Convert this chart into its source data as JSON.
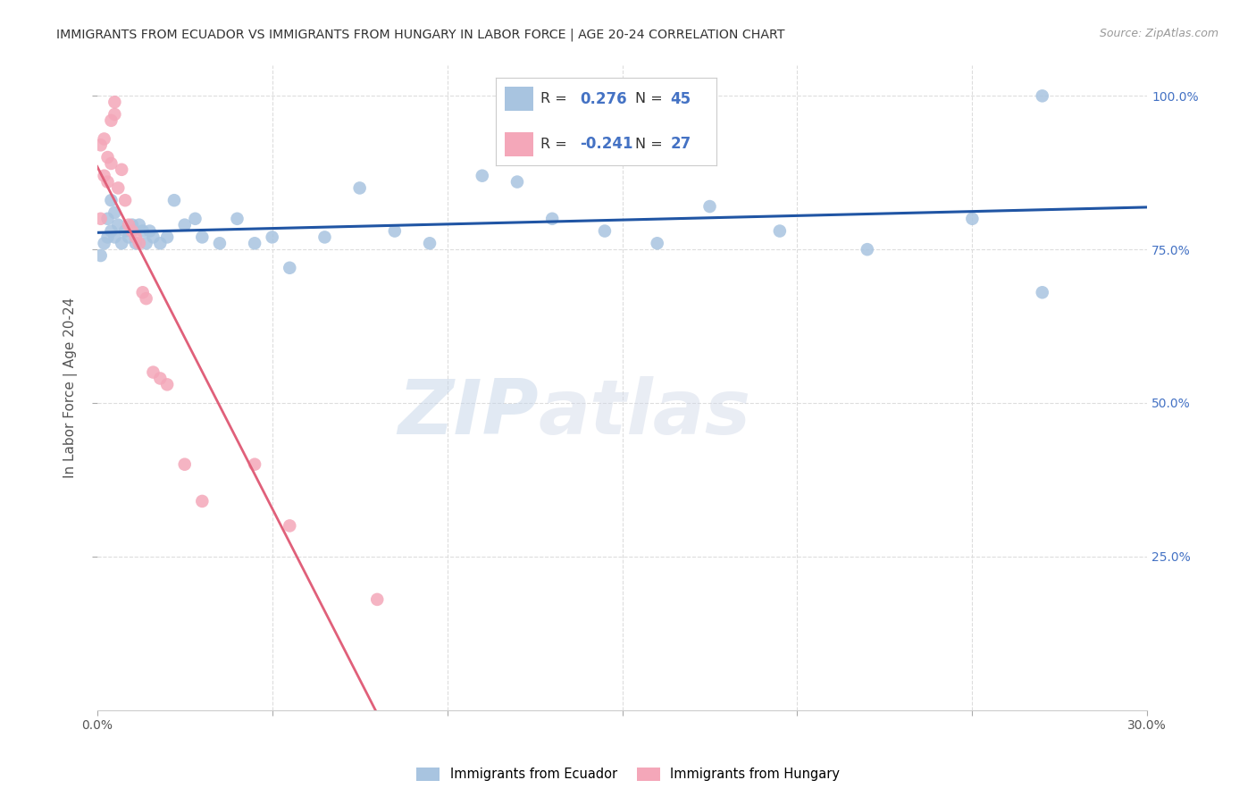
{
  "title": "IMMIGRANTS FROM ECUADOR VS IMMIGRANTS FROM HUNGARY IN LABOR FORCE | AGE 20-24 CORRELATION CHART",
  "source": "Source: ZipAtlas.com",
  "ylabel": "In Labor Force | Age 20-24",
  "xlim": [
    0.0,
    0.3
  ],
  "ylim": [
    0.0,
    1.05
  ],
  "r_ecuador": 0.276,
  "n_ecuador": 45,
  "r_hungary": -0.241,
  "n_hungary": 27,
  "ecuador_color": "#a8c4e0",
  "hungary_color": "#f4a7b9",
  "ecuador_line_color": "#2055a4",
  "hungary_line_color": "#e0607a",
  "ecuador_scatter_x": [
    0.001,
    0.002,
    0.003,
    0.003,
    0.004,
    0.004,
    0.005,
    0.005,
    0.006,
    0.007,
    0.008,
    0.009,
    0.01,
    0.011,
    0.012,
    0.013,
    0.014,
    0.015,
    0.016,
    0.018,
    0.02,
    0.022,
    0.025,
    0.028,
    0.03,
    0.035,
    0.04,
    0.045,
    0.05,
    0.055,
    0.065,
    0.075,
    0.085,
    0.095,
    0.11,
    0.12,
    0.13,
    0.145,
    0.16,
    0.175,
    0.195,
    0.22,
    0.25,
    0.27,
    0.27
  ],
  "ecuador_scatter_y": [
    0.74,
    0.76,
    0.77,
    0.8,
    0.78,
    0.83,
    0.77,
    0.81,
    0.79,
    0.76,
    0.78,
    0.77,
    0.79,
    0.76,
    0.79,
    0.78,
    0.76,
    0.78,
    0.77,
    0.76,
    0.77,
    0.83,
    0.79,
    0.8,
    0.77,
    0.76,
    0.8,
    0.76,
    0.77,
    0.72,
    0.77,
    0.85,
    0.78,
    0.76,
    0.87,
    0.86,
    0.8,
    0.78,
    0.76,
    0.82,
    0.78,
    0.75,
    0.8,
    0.68,
    1.0
  ],
  "hungary_scatter_x": [
    0.001,
    0.001,
    0.002,
    0.002,
    0.003,
    0.003,
    0.004,
    0.004,
    0.005,
    0.005,
    0.006,
    0.007,
    0.008,
    0.009,
    0.01,
    0.011,
    0.012,
    0.013,
    0.014,
    0.016,
    0.018,
    0.02,
    0.025,
    0.03,
    0.045,
    0.055,
    0.08
  ],
  "hungary_scatter_y": [
    0.8,
    0.92,
    0.87,
    0.93,
    0.86,
    0.9,
    0.89,
    0.96,
    0.97,
    0.99,
    0.85,
    0.88,
    0.83,
    0.79,
    0.78,
    0.77,
    0.76,
    0.68,
    0.67,
    0.55,
    0.54,
    0.53,
    0.4,
    0.34,
    0.4,
    0.3,
    0.18
  ],
  "watermark_zip": "ZIP",
  "watermark_atlas": "atlas",
  "background_color": "#ffffff",
  "grid_color": "#dddddd",
  "title_color": "#333333",
  "axis_label_color": "#555555",
  "right_ytick_color": "#4472c4",
  "legend_r_color": "#4472c4"
}
